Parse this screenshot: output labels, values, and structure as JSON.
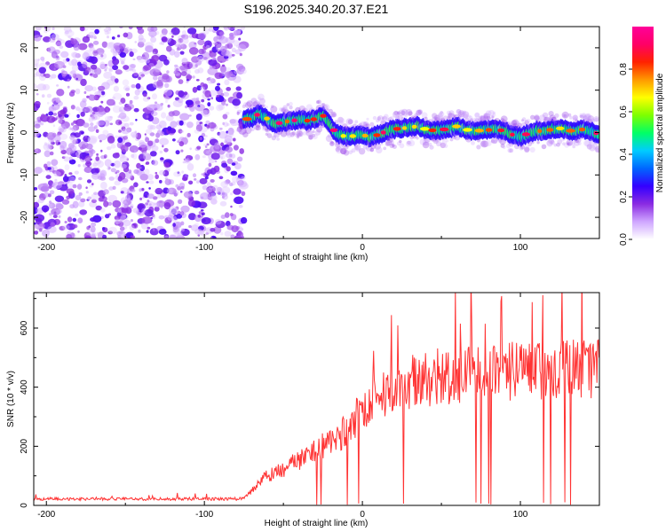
{
  "chart_data": [
    {
      "type": "heatmap",
      "title": "S196.2025.340.20.37.E21",
      "xlabel": "Height of straight line (km)",
      "ylabel": "Frequency (Hz)",
      "xlim": [
        -208,
        150
      ],
      "ylim": [
        -25,
        25
      ],
      "xticks": [
        -200,
        -100,
        0,
        100
      ],
      "xtick_labels": [
        "-200",
        "-100",
        "0",
        "100"
      ],
      "yticks": [
        -20,
        -10,
        0,
        10,
        20
      ],
      "ytick_labels": [
        "-20",
        "-10",
        "0",
        "10",
        "20"
      ],
      "noise_region_x": [
        -208,
        -75
      ],
      "ridge": {
        "x": [
          -75,
          -70,
          -65,
          -60,
          -55,
          -50,
          -45,
          -40,
          -35,
          -30,
          -25,
          -22,
          -18,
          -15,
          -10,
          -5,
          0,
          5,
          10,
          15,
          20,
          25,
          30,
          35,
          40,
          45,
          50,
          55,
          60,
          65,
          70,
          75,
          80,
          85,
          90,
          95,
          100,
          105,
          110,
          115,
          120,
          125,
          130,
          135,
          140,
          145,
          150
        ],
        "frequency": [
          3.0,
          3.5,
          4.5,
          3.2,
          2.0,
          2.5,
          2.8,
          3.0,
          2.8,
          3.2,
          4.0,
          3.0,
          0.5,
          -0.5,
          -1.0,
          -0.8,
          -0.5,
          -1.2,
          -0.5,
          0.3,
          0.8,
          1.0,
          1.2,
          1.5,
          0.8,
          0.5,
          0.6,
          1.0,
          1.5,
          0.8,
          0.3,
          0.5,
          0.6,
          0.8,
          0.3,
          -0.5,
          -1.0,
          -0.2,
          0.5,
          0.2,
          0.8,
          1.0,
          0.5,
          0.3,
          0.8,
          0.2,
          -0.4
        ]
      },
      "colorbar": {
        "label": "Normalized spectral amplitude",
        "range": [
          0,
          1
        ],
        "ticks": [
          0.0,
          0.2,
          0.4,
          0.6,
          0.8
        ],
        "tick_labels": [
          "0.0",
          "0.2",
          "0.4",
          "0.6",
          "0.8"
        ],
        "colors": [
          "#ffffff",
          "#cfa6ff",
          "#8a2be2",
          "#3300ff",
          "#0066ff",
          "#00ccff",
          "#00ff66",
          "#7dff00",
          "#ffff00",
          "#ff9900",
          "#ff2200",
          "#ff0066",
          "#ff0099"
        ]
      }
    },
    {
      "type": "line",
      "xlabel": "Height of straight line (km)",
      "ylabel": "SNR (10 * v/v)",
      "xlim": [
        -208,
        150
      ],
      "ylim": [
        0,
        720
      ],
      "xticks": [
        -200,
        -100,
        0,
        100
      ],
      "xtick_labels": [
        "-200",
        "-100",
        "0",
        "100"
      ],
      "yticks": [
        0,
        200,
        400,
        600
      ],
      "ytick_labels": [
        "0",
        "200",
        "400",
        "600"
      ],
      "line_color": "#ff3333",
      "series": [
        {
          "name": "SNR",
          "x": [
            -208,
            -180,
            -150,
            -120,
            -100,
            -80,
            -75,
            -70,
            -65,
            -60,
            -55,
            -50,
            -45,
            -40,
            -35,
            -30,
            -25,
            -20,
            -15,
            -10,
            -5,
            0,
            5,
            10,
            15,
            20,
            25,
            30,
            35,
            40,
            50,
            60,
            70,
            80,
            90,
            100,
            110,
            120,
            130,
            140,
            150
          ],
          "y": [
            22,
            22,
            22,
            22,
            22,
            22,
            25,
            50,
            80,
            100,
            110,
            120,
            140,
            150,
            170,
            185,
            200,
            215,
            235,
            255,
            290,
            320,
            355,
            375,
            390,
            400,
            410,
            420,
            425,
            430,
            435,
            440,
            445,
            450,
            450,
            455,
            460,
            460,
            460,
            465,
            465
          ]
        }
      ]
    }
  ]
}
